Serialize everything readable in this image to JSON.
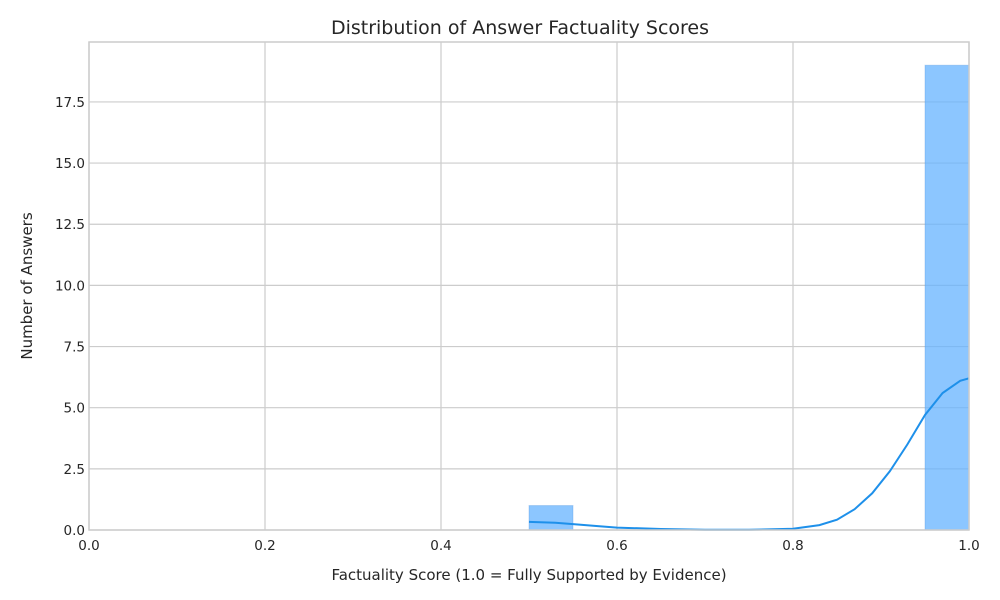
{
  "chart_data": {
    "type": "bar",
    "title": "Distribution of Answer Factuality Scores",
    "xlabel": "Factuality Score (1.0 = Fully Supported by Evidence)",
    "ylabel": "Number of Answers",
    "xlim": [
      0.0,
      1.0
    ],
    "ylim": [
      0.0,
      19.95
    ],
    "x_ticks": [
      "0.0",
      "0.2",
      "0.4",
      "0.6",
      "0.8",
      "1.0"
    ],
    "y_ticks": [
      "0.0",
      "2.5",
      "5.0",
      "7.5",
      "10.0",
      "12.5",
      "15.0",
      "17.5"
    ],
    "grid": true,
    "bins": [
      {
        "x_start": 0.5,
        "x_end": 0.55,
        "count": 1
      },
      {
        "x_start": 0.95,
        "x_end": 1.0,
        "count": 19
      }
    ],
    "kde_curve": {
      "x": [
        0.5,
        0.53,
        0.55,
        0.58,
        0.6,
        0.65,
        0.7,
        0.75,
        0.8,
        0.83,
        0.85,
        0.87,
        0.89,
        0.91,
        0.93,
        0.95,
        0.97,
        0.99,
        1.0
      ],
      "y": [
        0.33,
        0.3,
        0.24,
        0.15,
        0.1,
        0.04,
        0.01,
        0.01,
        0.05,
        0.2,
        0.42,
        0.85,
        1.5,
        2.4,
        3.5,
        4.7,
        5.6,
        6.1,
        6.2
      ]
    },
    "colors": {
      "bar": "#66b3ff",
      "curve": "#1e90ea",
      "grid": "#cccccc"
    }
  }
}
